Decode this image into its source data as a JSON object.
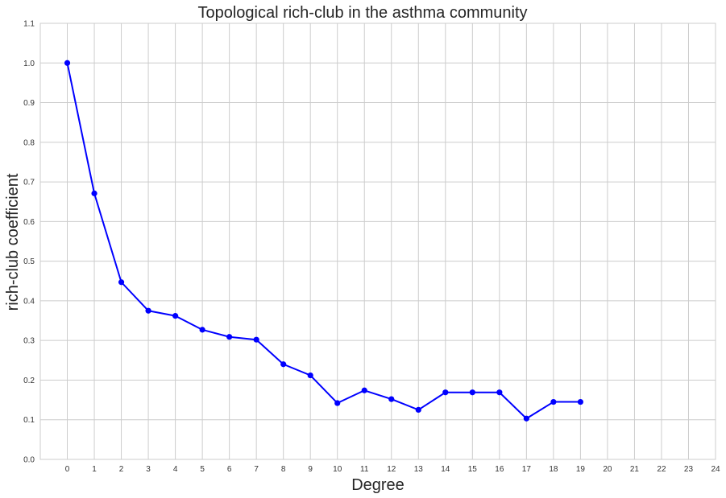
{
  "chart_data": {
    "type": "line",
    "title": "Topological rich-club in the asthma community",
    "xlabel": "Degree",
    "ylabel": "rich-club coefficient",
    "xlim": [
      -1,
      24
    ],
    "ylim": [
      0,
      1.1
    ],
    "x_ticks": [
      "0",
      "1",
      "2",
      "3",
      "4",
      "5",
      "6",
      "7",
      "8",
      "9",
      "10",
      "11",
      "12",
      "13",
      "14",
      "15",
      "16",
      "17",
      "18",
      "19",
      "20",
      "21",
      "22",
      "23",
      "24"
    ],
    "y_ticks": [
      "0.0",
      "0.1",
      "0.2",
      "0.3",
      "0.4",
      "0.5",
      "0.6",
      "0.7",
      "0.8",
      "0.9",
      "1.0",
      "1.1"
    ],
    "grid": true,
    "series": [
      {
        "color": "#0000ff",
        "x": [
          0,
          1,
          2,
          3,
          4,
          5,
          6,
          7,
          8,
          9,
          10,
          11,
          12,
          13,
          14,
          15,
          16,
          17,
          18,
          19
        ],
        "y": [
          1.0,
          0.671,
          0.447,
          0.375,
          0.362,
          0.327,
          0.309,
          0.302,
          0.24,
          0.212,
          0.142,
          0.174,
          0.152,
          0.125,
          0.169,
          0.169,
          0.169,
          0.103,
          0.145,
          0.145
        ]
      }
    ]
  }
}
